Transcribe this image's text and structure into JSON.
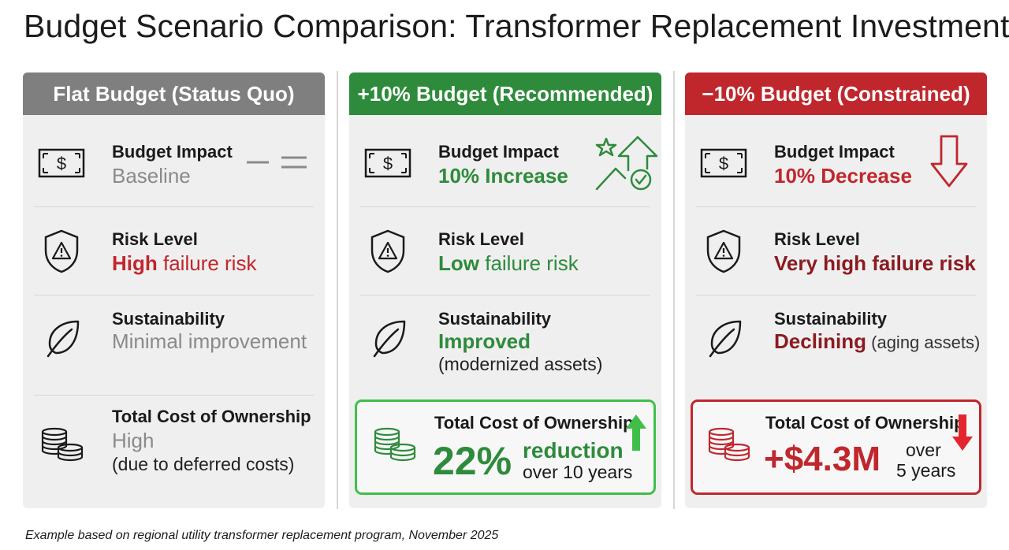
{
  "title": "Budget Scenario Comparison: Transformer Replacement Investment",
  "footnote": "Example based on regional utility transformer replacement program, November 2025",
  "colors": {
    "flat": "#7f7f7f",
    "recommended": "#2e8b3b",
    "constrained": "#c0272d",
    "recommended_border": "#3fbf49"
  },
  "scenarios": [
    {
      "header": "Flat Budget (Status Quo)",
      "budget_label": "Budget Impact",
      "budget_value": "Baseline",
      "budget_icon": "equals-icon",
      "risk_label": "Risk Level",
      "risk_em": "High",
      "risk_rest": " failure risk",
      "sustain_label": "Sustainability",
      "sustain_value": "Minimal improvement",
      "tco_label": "Total Cost of Ownership",
      "tco_value": "High",
      "tco_sub": "(due to deferred costs)"
    },
    {
      "header": "+10% Budget (Recommended)",
      "budget_label": "Budget Impact",
      "budget_value": "10% Increase",
      "budget_icon": "growth-star-arrow-icon",
      "risk_label": "Risk Level",
      "risk_em": "Low",
      "risk_rest": " failure risk",
      "sustain_label": "Sustainability",
      "sustain_value": "Improved",
      "sustain_sub": "(modernized assets)",
      "tco_label": "Total Cost of Ownership",
      "tco_big": "22%",
      "tco_word": "reduction",
      "tco_period": "over 10 years",
      "tco_icon": "up-arrow-icon"
    },
    {
      "header": "−10% Budget (Constrained)",
      "budget_label": "Budget Impact",
      "budget_value": "10% Decrease",
      "budget_icon": "down-arrow-icon",
      "risk_label": "Risk Level",
      "risk_value": "Very high failure risk",
      "sustain_label": "Sustainability",
      "sustain_em": "Declining",
      "sustain_rest": " (aging assets)",
      "tco_label": "Total Cost of Ownership",
      "tco_big": "+$4.3M",
      "tco_word": "over",
      "tco_period": "5 years",
      "tco_icon": "down-arrow-icon"
    }
  ]
}
